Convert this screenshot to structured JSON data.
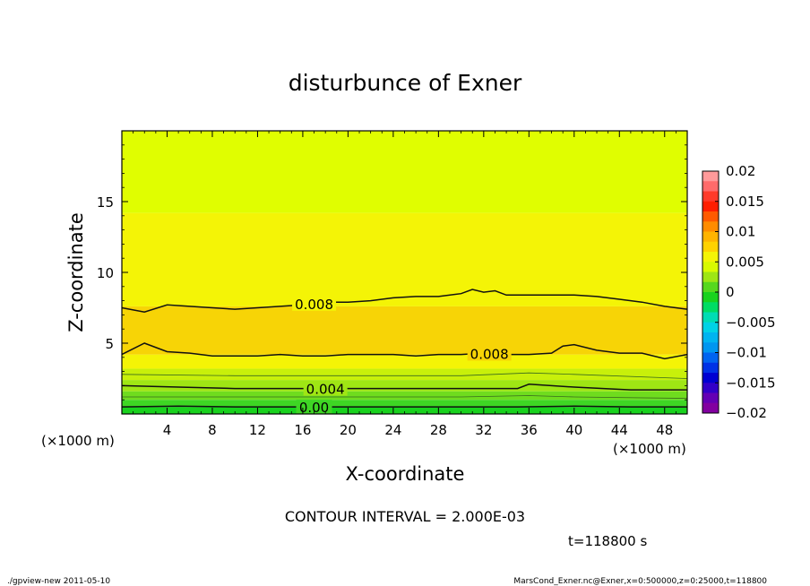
{
  "chart_data": {
    "type": "contour",
    "title": "disturbunce of Exner",
    "xlabel": "X-coordinate",
    "ylabel": "Z-coordinate",
    "x_unit_label": "(×1000 m)",
    "x_unit_label_right": "(×1000 m)",
    "xlim": [
      0,
      50
    ],
    "ylim": [
      0,
      20
    ],
    "x_ticks": [
      4,
      8,
      12,
      16,
      20,
      24,
      28,
      32,
      36,
      40,
      44,
      48
    ],
    "x_tick_labels": [
      "4",
      "8",
      "12",
      "16",
      "20",
      "24",
      "28",
      "32",
      "36",
      "40",
      "44",
      "48"
    ],
    "y_ticks": [
      5,
      10,
      15
    ],
    "y_tick_labels": [
      "5",
      "10",
      "15"
    ],
    "contour_interval_text": "CONTOUR INTERVAL = 2.000E-03",
    "time_text": "t=118800 s",
    "bands": [
      {
        "z_low": 0.0,
        "z_high": 0.5,
        "value": -0.001,
        "color": "#19d21e"
      },
      {
        "z_low": 0.5,
        "z_high": 1.0,
        "value": 0.0,
        "color": "#3ed624"
      },
      {
        "z_low": 1.0,
        "z_high": 1.6,
        "value": 0.002,
        "color": "#6fdc1e"
      },
      {
        "z_low": 1.6,
        "z_high": 2.4,
        "value": 0.003,
        "color": "#9fe614"
      },
      {
        "z_low": 2.4,
        "z_high": 3.2,
        "value": 0.004,
        "color": "#c8f00a"
      },
      {
        "z_low": 3.2,
        "z_high": 4.2,
        "value": 0.006,
        "color": "#f4f406"
      },
      {
        "z_low": 4.2,
        "z_high": 7.6,
        "value": 0.009,
        "color": "#f7d406"
      },
      {
        "z_low": 7.6,
        "z_high": 14.2,
        "value": 0.007,
        "color": "#f4f406"
      },
      {
        "z_low": 14.2,
        "z_high": 20.0,
        "value": 0.005,
        "color": "#e0fe00"
      }
    ],
    "contour_lines": [
      {
        "level_label": "0.008",
        "x": [
          0,
          2,
          4,
          6,
          8,
          10,
          12,
          14,
          16,
          18,
          20,
          22,
          24,
          26,
          28,
          30,
          31,
          32,
          33,
          34,
          36,
          38,
          40,
          42,
          44,
          46,
          48,
          50
        ],
        "z": [
          7.5,
          7.2,
          7.7,
          7.6,
          7.5,
          7.4,
          7.5,
          7.6,
          7.7,
          7.9,
          7.9,
          8.0,
          8.2,
          8.3,
          8.3,
          8.5,
          8.8,
          8.6,
          8.7,
          8.4,
          8.4,
          8.4,
          8.4,
          8.3,
          8.1,
          7.9,
          7.6,
          7.4
        ],
        "label_at_x": 17
      },
      {
        "level_label": "0.008",
        "x": [
          0,
          2,
          4,
          6,
          8,
          10,
          12,
          14,
          16,
          18,
          20,
          22,
          24,
          26,
          28,
          30,
          32,
          34,
          36,
          38,
          39,
          40,
          42,
          44,
          46,
          48,
          50
        ],
        "z": [
          4.2,
          5.0,
          4.4,
          4.3,
          4.1,
          4.1,
          4.1,
          4.2,
          4.1,
          4.1,
          4.2,
          4.2,
          4.2,
          4.1,
          4.2,
          4.2,
          4.3,
          4.2,
          4.2,
          4.3,
          4.8,
          4.9,
          4.5,
          4.3,
          4.3,
          3.9,
          4.2
        ],
        "label_at_x": 32.5
      },
      {
        "level_label": "0.004",
        "x": [
          0,
          5,
          10,
          15,
          20,
          25,
          30,
          35,
          36,
          40,
          45,
          50
        ],
        "z": [
          2.0,
          1.9,
          1.8,
          1.8,
          1.8,
          1.8,
          1.8,
          1.8,
          2.1,
          1.9,
          1.7,
          1.7
        ],
        "label_at_x": 18
      },
      {
        "level_label": "0.00",
        "x": [
          0,
          5,
          10,
          15,
          20,
          25,
          30,
          35,
          40,
          45,
          50
        ],
        "z": [
          0.5,
          0.55,
          0.5,
          0.5,
          0.5,
          0.5,
          0.5,
          0.5,
          0.55,
          0.5,
          0.5
        ],
        "label_at_x": 17
      }
    ],
    "thin_lines": [
      {
        "x": [
          0,
          10,
          20,
          30,
          36,
          40,
          50
        ],
        "z": [
          2.8,
          2.7,
          2.7,
          2.7,
          2.9,
          2.8,
          2.5
        ]
      },
      {
        "x": [
          0,
          10,
          20,
          30,
          36,
          40,
          50
        ],
        "z": [
          1.2,
          1.2,
          1.2,
          1.2,
          1.3,
          1.2,
          1.1
        ]
      }
    ],
    "colorbar": {
      "tick_labels": [
        "0.02",
        "0.015",
        "0.01",
        "0.005",
        "0",
        "−0.005",
        "−0.01",
        "−0.015",
        "−0.02"
      ],
      "colors_top_to_bottom": [
        "#ff9a9a",
        "#ff6b6b",
        "#ff3a2a",
        "#ff1e00",
        "#ff5a00",
        "#ff8c00",
        "#ffb400",
        "#ffd200",
        "#f4f406",
        "#d8fa00",
        "#9ee614",
        "#56d81e",
        "#19d21e",
        "#00dc64",
        "#00dcb4",
        "#00d2e6",
        "#00b4f0",
        "#0096f0",
        "#0064f0",
        "#0032e6",
        "#0000d2",
        "#3200c8",
        "#6400b4",
        "#8200a0"
      ]
    }
  },
  "footer": {
    "left": "./gpview-new  2011-05-10",
    "right": "MarsCond_Exner.nc@Exner,x=0:500000,z=0:25000,t=118800"
  }
}
